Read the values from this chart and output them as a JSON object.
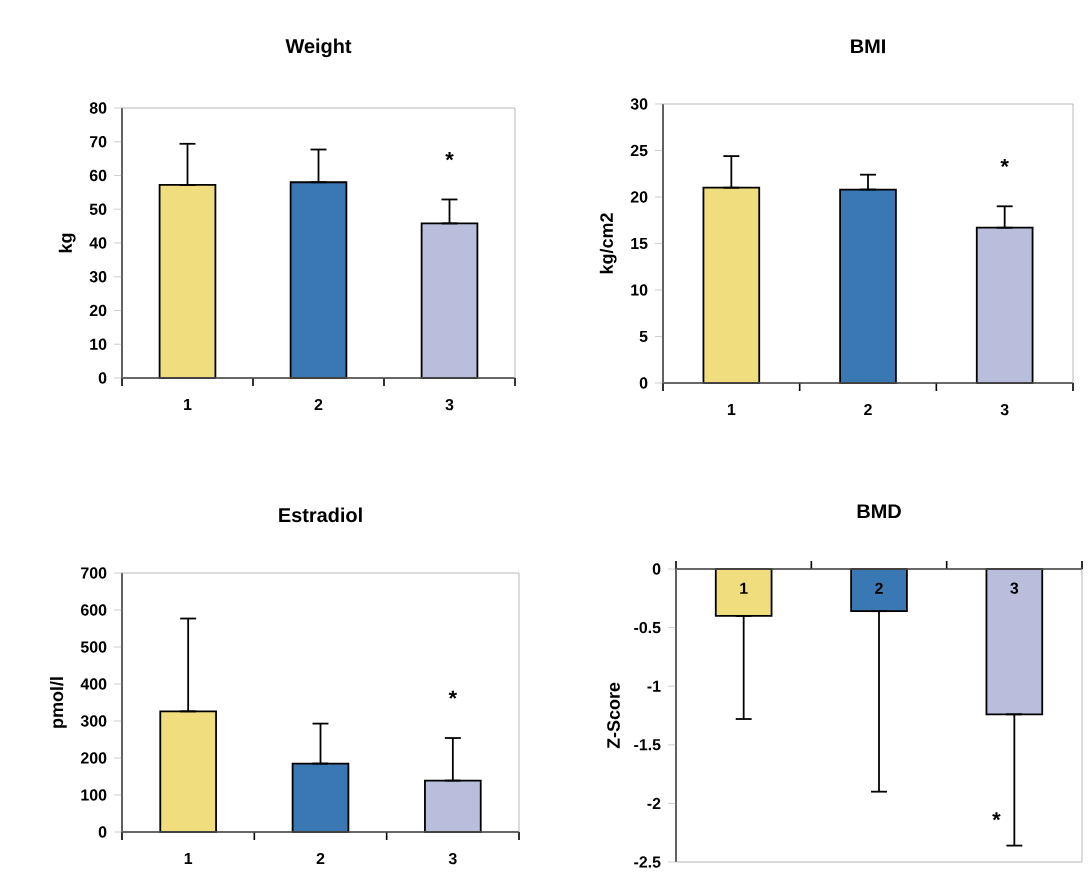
{
  "chart_data": [
    {
      "type": "bar",
      "title": "Weight",
      "ylabel": "kg",
      "categories": [
        "1",
        "2",
        "3"
      ],
      "values": [
        57.2,
        58.0,
        45.8
      ],
      "colors": [
        "#f0de7e",
        "#3a78b4",
        "#b8bedc"
      ],
      "errors": [
        [
          57.2,
          69.4
        ],
        [
          58.0,
          67.7
        ],
        [
          45.8,
          52.9
        ]
      ],
      "ylim": [
        0,
        80
      ],
      "yticks": [
        0,
        10,
        20,
        30,
        40,
        50,
        60,
        70,
        80
      ],
      "annotations": [
        "*"
      ]
    },
    {
      "type": "bar",
      "title": "BMI",
      "ylabel": "kg/cm2",
      "categories": [
        "1",
        "2",
        "3"
      ],
      "values": [
        21.0,
        20.8,
        16.7
      ],
      "colors": [
        "#f0de7e",
        "#3a78b4",
        "#b8bedc"
      ],
      "errors": [
        [
          21.0,
          24.4
        ],
        [
          20.8,
          22.4
        ],
        [
          16.7,
          19.0
        ]
      ],
      "ylim": [
        0,
        30
      ],
      "yticks": [
        0,
        5,
        10,
        15,
        20,
        25,
        30
      ],
      "annotations": [
        "*"
      ]
    },
    {
      "type": "bar",
      "title": "Estradiol",
      "ylabel": "pmol/l",
      "categories": [
        "1",
        "2",
        "3"
      ],
      "values": [
        326,
        185,
        139
      ],
      "colors": [
        "#f0de7e",
        "#3a78b4",
        "#b8bedc"
      ],
      "errors": [
        [
          326,
          577
        ],
        [
          185,
          293
        ],
        [
          139,
          254
        ]
      ],
      "ylim": [
        0,
        700
      ],
      "yticks": [
        0,
        100,
        200,
        300,
        400,
        500,
        600,
        700
      ],
      "annotations": [
        "*"
      ]
    },
    {
      "type": "bar",
      "title": "BMD",
      "ylabel": "Z-Score",
      "categories": [
        "1",
        "2",
        "3"
      ],
      "values": [
        -0.4,
        -0.36,
        -1.24
      ],
      "colors": [
        "#f0de7e",
        "#3a78b4",
        "#b8bedc"
      ],
      "errors": [
        [
          -1.28,
          -0.4
        ],
        [
          -1.9,
          -0.36
        ],
        [
          -2.36,
          -1.24
        ]
      ],
      "ylim": [
        -2.5,
        0
      ],
      "yticks": [
        0,
        -0.5,
        -1,
        -1.5,
        -2,
        -2.5
      ],
      "annotations": [
        "*"
      ]
    }
  ]
}
